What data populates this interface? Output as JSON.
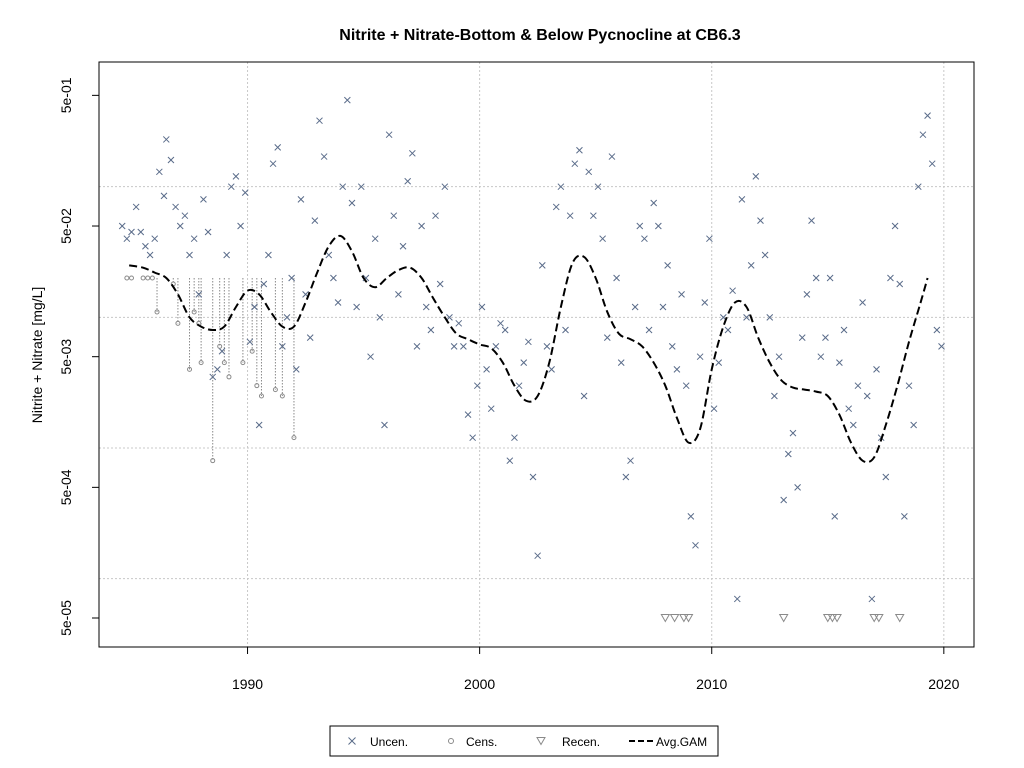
{
  "chart_data": {
    "type": "scatter",
    "title": "Nitrite + Nitrate-Bottom & Below Pycnocline at CB6.3",
    "xlabel": "",
    "ylabel": "Nitrite + Nitrate [mg/L]",
    "y_scale": "log",
    "xlim": [
      1983.6,
      2021.3
    ],
    "ylim": [
      3e-05,
      0.9
    ],
    "x_ticks": [
      1990,
      2000,
      2010,
      2020
    ],
    "x_tick_labels": [
      "1990",
      "2000",
      "2010",
      "2020"
    ],
    "y_ticks": [
      5e-05,
      0.0005,
      0.005,
      0.05,
      0.5
    ],
    "y_tick_labels": [
      "5e-05",
      "5e-04",
      "5e-03",
      "5e-02",
      "5e-01"
    ],
    "gridlines_y": [
      0.0001,
      0.001,
      0.01,
      0.1
    ],
    "gridlines_x": [
      1990,
      2000,
      2010,
      2020
    ],
    "grid": true,
    "legend_position": "bottom",
    "colors": {
      "uncensored": "#5a6c8a",
      "censored": "#8a8a8a",
      "recensored": "#8a8a8a",
      "gam": "#000000",
      "grid": "#c8c8c8"
    },
    "legend": [
      {
        "label": "Uncen.",
        "marker": "x"
      },
      {
        "label": "Cens.",
        "marker": "circle"
      },
      {
        "label": "Recen.",
        "marker": "triangle-down"
      },
      {
        "label": "Avg.GAM",
        "marker": "dashed-line"
      }
    ],
    "series": [
      {
        "name": "Uncen.",
        "marker": "x",
        "points": [
          [
            1984.6,
            0.05
          ],
          [
            1984.8,
            0.04
          ],
          [
            1985.0,
            0.045
          ],
          [
            1985.2,
            0.07
          ],
          [
            1985.4,
            0.045
          ],
          [
            1985.6,
            0.035
          ],
          [
            1985.8,
            0.03
          ],
          [
            1986.0,
            0.04
          ],
          [
            1986.2,
            0.13
          ],
          [
            1986.4,
            0.085
          ],
          [
            1986.5,
            0.23
          ],
          [
            1986.7,
            0.16
          ],
          [
            1986.9,
            0.07
          ],
          [
            1987.1,
            0.05
          ],
          [
            1987.3,
            0.06
          ],
          [
            1987.5,
            0.03
          ],
          [
            1987.7,
            0.04
          ],
          [
            1987.9,
            0.015
          ],
          [
            1988.1,
            0.08
          ],
          [
            1988.3,
            0.045
          ],
          [
            1988.5,
            0.0035
          ],
          [
            1988.7,
            0.004
          ],
          [
            1988.9,
            0.0055
          ],
          [
            1989.1,
            0.03
          ],
          [
            1989.3,
            0.1
          ],
          [
            1989.5,
            0.12
          ],
          [
            1989.7,
            0.05
          ],
          [
            1989.9,
            0.09
          ],
          [
            1990.1,
            0.0065
          ],
          [
            1990.3,
            0.012
          ],
          [
            1990.5,
            0.0015
          ],
          [
            1990.7,
            0.018
          ],
          [
            1990.9,
            0.03
          ],
          [
            1991.1,
            0.15
          ],
          [
            1991.3,
            0.2
          ],
          [
            1991.5,
            0.006
          ],
          [
            1991.7,
            0.01
          ],
          [
            1991.9,
            0.02
          ],
          [
            1992.1,
            0.004
          ],
          [
            1992.3,
            0.08
          ],
          [
            1992.5,
            0.015
          ],
          [
            1992.7,
            0.007
          ],
          [
            1992.9,
            0.055
          ],
          [
            1993.1,
            0.32
          ],
          [
            1993.3,
            0.17
          ],
          [
            1993.5,
            0.03
          ],
          [
            1993.7,
            0.02
          ],
          [
            1993.9,
            0.013
          ],
          [
            1994.1,
            0.1
          ],
          [
            1994.3,
            0.46
          ],
          [
            1994.5,
            0.075
          ],
          [
            1994.7,
            0.012
          ],
          [
            1994.9,
            0.1
          ],
          [
            1995.1,
            0.02
          ],
          [
            1995.3,
            0.005
          ],
          [
            1995.5,
            0.04
          ],
          [
            1995.7,
            0.01
          ],
          [
            1995.9,
            0.0015
          ],
          [
            1996.1,
            0.25
          ],
          [
            1996.3,
            0.06
          ],
          [
            1996.5,
            0.015
          ],
          [
            1996.7,
            0.035
          ],
          [
            1996.9,
            0.11
          ],
          [
            1997.1,
            0.18
          ],
          [
            1997.3,
            0.006
          ],
          [
            1997.5,
            0.05
          ],
          [
            1997.7,
            0.012
          ],
          [
            1997.9,
            0.008
          ],
          [
            1998.1,
            0.06
          ],
          [
            1998.3,
            0.018
          ],
          [
            1998.5,
            0.1
          ],
          [
            1998.7,
            0.01
          ],
          [
            1998.9,
            0.006
          ],
          [
            1999.1,
            0.009
          ],
          [
            1999.3,
            0.006
          ],
          [
            1999.5,
            0.0018
          ],
          [
            1999.7,
            0.0012
          ],
          [
            1999.9,
            0.003
          ],
          [
            2000.1,
            0.012
          ],
          [
            2000.3,
            0.004
          ],
          [
            2000.5,
            0.002
          ],
          [
            2000.7,
            0.006
          ],
          [
            2000.9,
            0.009
          ],
          [
            2001.1,
            0.008
          ],
          [
            2001.3,
            0.0008
          ],
          [
            2001.5,
            0.0012
          ],
          [
            2001.7,
            0.003
          ],
          [
            2001.9,
            0.0045
          ],
          [
            2002.1,
            0.0065
          ],
          [
            2002.3,
            0.0006
          ],
          [
            2002.5,
            0.00015
          ],
          [
            2002.7,
            0.025
          ],
          [
            2002.9,
            0.006
          ],
          [
            2003.1,
            0.004
          ],
          [
            2003.3,
            0.07
          ],
          [
            2003.5,
            0.1
          ],
          [
            2003.7,
            0.008
          ],
          [
            2003.9,
            0.06
          ],
          [
            2004.1,
            0.15
          ],
          [
            2004.3,
            0.19
          ],
          [
            2004.5,
            0.0025
          ],
          [
            2004.7,
            0.13
          ],
          [
            2004.9,
            0.06
          ],
          [
            2005.1,
            0.1
          ],
          [
            2005.3,
            0.04
          ],
          [
            2005.5,
            0.007
          ],
          [
            2005.7,
            0.17
          ],
          [
            2005.9,
            0.02
          ],
          [
            2006.1,
            0.0045
          ],
          [
            2006.3,
            0.0006
          ],
          [
            2006.5,
            0.0008
          ],
          [
            2006.7,
            0.012
          ],
          [
            2006.9,
            0.05
          ],
          [
            2007.1,
            0.04
          ],
          [
            2007.3,
            0.008
          ],
          [
            2007.5,
            0.075
          ],
          [
            2007.7,
            0.05
          ],
          [
            2007.9,
            0.012
          ],
          [
            2008.1,
            0.025
          ],
          [
            2008.3,
            0.006
          ],
          [
            2008.5,
            0.004
          ],
          [
            2008.7,
            0.015
          ],
          [
            2008.9,
            0.003
          ],
          [
            2009.1,
            0.0003
          ],
          [
            2009.3,
            0.00018
          ],
          [
            2009.5,
            0.005
          ],
          [
            2009.7,
            0.013
          ],
          [
            2009.9,
            0.04
          ],
          [
            2010.1,
            0.002
          ],
          [
            2010.3,
            0.0045
          ],
          [
            2010.5,
            0.01
          ],
          [
            2010.7,
            0.008
          ],
          [
            2010.9,
            0.016
          ],
          [
            2011.1,
            7e-05
          ],
          [
            2011.3,
            0.08
          ],
          [
            2011.5,
            0.01
          ],
          [
            2011.7,
            0.025
          ],
          [
            2011.9,
            0.12
          ],
          [
            2012.1,
            0.055
          ],
          [
            2012.3,
            0.03
          ],
          [
            2012.5,
            0.01
          ],
          [
            2012.7,
            0.0025
          ],
          [
            2012.9,
            0.005
          ],
          [
            2013.1,
            0.0004
          ],
          [
            2013.3,
            0.0009
          ],
          [
            2013.5,
            0.0013
          ],
          [
            2013.7,
            0.0005
          ],
          [
            2013.9,
            0.007
          ],
          [
            2014.1,
            0.015
          ],
          [
            2014.3,
            0.055
          ],
          [
            2014.5,
            0.02
          ],
          [
            2014.7,
            0.005
          ],
          [
            2014.9,
            0.007
          ],
          [
            2015.1,
            0.02
          ],
          [
            2015.3,
            0.0003
          ],
          [
            2015.5,
            0.0045
          ],
          [
            2015.7,
            0.008
          ],
          [
            2015.9,
            0.002
          ],
          [
            2016.1,
            0.0015
          ],
          [
            2016.3,
            0.003
          ],
          [
            2016.5,
            0.013
          ],
          [
            2016.7,
            0.0025
          ],
          [
            2016.9,
            7e-05
          ],
          [
            2017.1,
            0.004
          ],
          [
            2017.3,
            0.0012
          ],
          [
            2017.5,
            0.0006
          ],
          [
            2017.7,
            0.02
          ],
          [
            2017.9,
            0.05
          ],
          [
            2018.1,
            0.018
          ],
          [
            2018.3,
            0.0003
          ],
          [
            2018.5,
            0.003
          ],
          [
            2018.7,
            0.0015
          ],
          [
            2018.9,
            0.1
          ],
          [
            2019.1,
            0.25
          ],
          [
            2019.3,
            0.35
          ],
          [
            2019.5,
            0.15
          ],
          [
            2019.7,
            0.008
          ],
          [
            2019.9,
            0.006
          ]
        ]
      },
      {
        "name": "Cens.",
        "marker": "circle",
        "points": [
          [
            1984.8,
            0.02
          ],
          [
            1985.0,
            0.02
          ],
          [
            1985.5,
            0.02
          ],
          [
            1985.7,
            0.02
          ],
          [
            1985.9,
            0.02
          ],
          [
            1986.1,
            0.011
          ],
          [
            1986.8,
            0.018
          ],
          [
            1987.0,
            0.009
          ],
          [
            1987.7,
            0.011
          ],
          [
            1987.9,
            0.009
          ],
          [
            1988.0,
            0.0045
          ],
          [
            1988.8,
            0.006
          ],
          [
            1989.0,
            0.0045
          ],
          [
            1989.2,
            0.0035
          ],
          [
            1989.8,
            0.0045
          ],
          [
            1990.2,
            0.0055
          ],
          [
            1990.4,
            0.003
          ],
          [
            1990.6,
            0.0025
          ],
          [
            1991.2,
            0.0028
          ],
          [
            1991.5,
            0.0025
          ],
          [
            1992.0,
            0.0012
          ],
          [
            1988.5,
            0.0008
          ],
          [
            1987.5,
            0.004
          ]
        ]
      },
      {
        "name": "Recen.",
        "marker": "triangle-down",
        "points": [
          [
            2008.0,
            5e-05
          ],
          [
            2008.4,
            5e-05
          ],
          [
            2008.8,
            5e-05
          ],
          [
            2009.0,
            5e-05
          ],
          [
            2013.1,
            5e-05
          ],
          [
            2015.0,
            5e-05
          ],
          [
            2015.2,
            5e-05
          ],
          [
            2015.4,
            5e-05
          ],
          [
            2017.0,
            5e-05
          ],
          [
            2017.2,
            5e-05
          ],
          [
            2018.1,
            5e-05
          ]
        ]
      },
      {
        "name": "Avg.GAM",
        "marker": "dashed-line",
        "points": [
          [
            1984.9,
            0.025
          ],
          [
            1985.5,
            0.024
          ],
          [
            1986.0,
            0.022
          ],
          [
            1986.5,
            0.02
          ],
          [
            1987.0,
            0.015
          ],
          [
            1987.5,
            0.01
          ],
          [
            1988.0,
            0.0085
          ],
          [
            1988.5,
            0.008
          ],
          [
            1989.0,
            0.0085
          ],
          [
            1989.5,
            0.012
          ],
          [
            1990.0,
            0.016
          ],
          [
            1990.5,
            0.015
          ],
          [
            1991.0,
            0.011
          ],
          [
            1991.5,
            0.0085
          ],
          [
            1992.0,
            0.0085
          ],
          [
            1992.5,
            0.013
          ],
          [
            1993.0,
            0.022
          ],
          [
            1993.5,
            0.035
          ],
          [
            1994.0,
            0.042
          ],
          [
            1994.5,
            0.032
          ],
          [
            1995.0,
            0.02
          ],
          [
            1995.5,
            0.017
          ],
          [
            1996.0,
            0.02
          ],
          [
            1996.5,
            0.023
          ],
          [
            1997.0,
            0.024
          ],
          [
            1997.5,
            0.02
          ],
          [
            1998.0,
            0.014
          ],
          [
            1998.5,
            0.01
          ],
          [
            1999.0,
            0.0075
          ],
          [
            1999.5,
            0.0068
          ],
          [
            2000.0,
            0.0062
          ],
          [
            2000.5,
            0.0058
          ],
          [
            2001.0,
            0.0045
          ],
          [
            2001.5,
            0.003
          ],
          [
            2002.0,
            0.0023
          ],
          [
            2002.5,
            0.0025
          ],
          [
            2003.0,
            0.0045
          ],
          [
            2003.5,
            0.012
          ],
          [
            2004.0,
            0.026
          ],
          [
            2004.5,
            0.029
          ],
          [
            2005.0,
            0.02
          ],
          [
            2005.5,
            0.011
          ],
          [
            2006.0,
            0.0075
          ],
          [
            2006.5,
            0.0068
          ],
          [
            2007.0,
            0.006
          ],
          [
            2007.5,
            0.0045
          ],
          [
            2008.0,
            0.003
          ],
          [
            2008.5,
            0.0017
          ],
          [
            2009.0,
            0.0011
          ],
          [
            2009.5,
            0.0014
          ],
          [
            2010.0,
            0.004
          ],
          [
            2010.5,
            0.0085
          ],
          [
            2011.0,
            0.013
          ],
          [
            2011.5,
            0.012
          ],
          [
            2012.0,
            0.007
          ],
          [
            2012.5,
            0.0045
          ],
          [
            2013.0,
            0.0033
          ],
          [
            2013.5,
            0.0029
          ],
          [
            2014.0,
            0.0028
          ],
          [
            2014.5,
            0.0027
          ],
          [
            2015.0,
            0.0025
          ],
          [
            2015.5,
            0.0018
          ],
          [
            2016.0,
            0.0011
          ],
          [
            2016.5,
            0.0008
          ],
          [
            2017.0,
            0.00085
          ],
          [
            2017.5,
            0.0015
          ],
          [
            2018.0,
            0.003
          ],
          [
            2018.5,
            0.0065
          ],
          [
            2019.0,
            0.013
          ],
          [
            2019.3,
            0.02
          ]
        ]
      }
    ]
  }
}
